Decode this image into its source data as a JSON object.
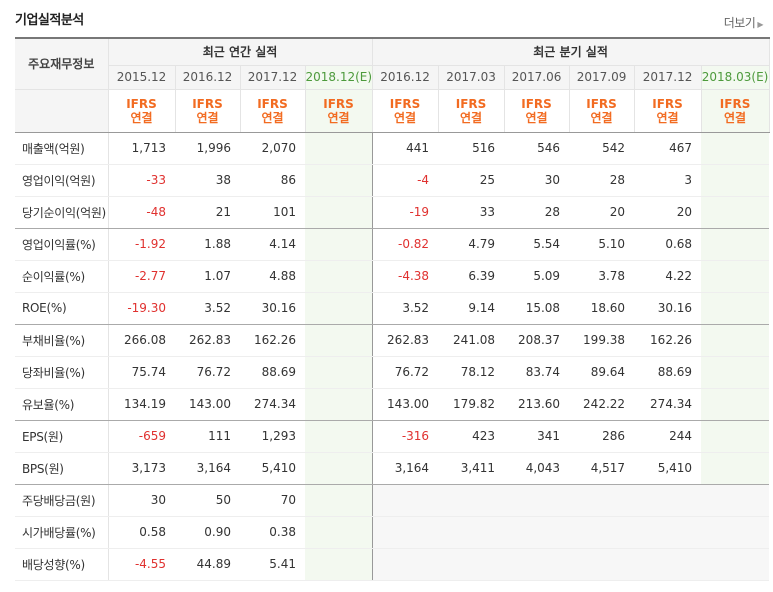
{
  "header": {
    "title": "기업실적분석",
    "more_label": "더보기"
  },
  "table": {
    "corner_label": "주요재무정보",
    "groups": {
      "annual": "최근 연간 실적",
      "quarterly": "최근 분기 실적"
    },
    "annual_periods": [
      "2015.12",
      "2016.12",
      "2017.12",
      "2018.12(E)"
    ],
    "quarterly_periods": [
      "2016.12",
      "2017.03",
      "2017.06",
      "2017.09",
      "2017.12",
      "2018.03(E)"
    ],
    "basis": {
      "line1": "IFRS",
      "line2": "연결"
    },
    "rows": [
      {
        "label": "매출액(억원)",
        "annual": [
          "1,713",
          "1,996",
          "2,070",
          ""
        ],
        "quarterly": [
          "441",
          "516",
          "546",
          "542",
          "467",
          ""
        ]
      },
      {
        "label": "영업이익(억원)",
        "annual": [
          "-33",
          "38",
          "86",
          ""
        ],
        "quarterly": [
          "-4",
          "25",
          "30",
          "28",
          "3",
          ""
        ]
      },
      {
        "label": "당기순이익(억원)",
        "annual": [
          "-48",
          "21",
          "101",
          ""
        ],
        "quarterly": [
          "-19",
          "33",
          "28",
          "20",
          "20",
          ""
        ]
      },
      {
        "label": "영업이익률(%)",
        "annual": [
          "-1.92",
          "1.88",
          "4.14",
          ""
        ],
        "quarterly": [
          "-0.82",
          "4.79",
          "5.54",
          "5.10",
          "0.68",
          ""
        ]
      },
      {
        "label": "순이익률(%)",
        "annual": [
          "-2.77",
          "1.07",
          "4.88",
          ""
        ],
        "quarterly": [
          "-4.38",
          "6.39",
          "5.09",
          "3.78",
          "4.22",
          ""
        ]
      },
      {
        "label": "ROE(%)",
        "annual": [
          "-19.30",
          "3.52",
          "30.16",
          ""
        ],
        "quarterly": [
          "3.52",
          "9.14",
          "15.08",
          "18.60",
          "30.16",
          ""
        ]
      },
      {
        "label": "부채비율(%)",
        "annual": [
          "266.08",
          "262.83",
          "162.26",
          ""
        ],
        "quarterly": [
          "262.83",
          "241.08",
          "208.37",
          "199.38",
          "162.26",
          ""
        ]
      },
      {
        "label": "당좌비율(%)",
        "annual": [
          "75.74",
          "76.72",
          "88.69",
          ""
        ],
        "quarterly": [
          "76.72",
          "78.12",
          "83.74",
          "89.64",
          "88.69",
          ""
        ]
      },
      {
        "label": "유보율(%)",
        "annual": [
          "134.19",
          "143.00",
          "274.34",
          ""
        ],
        "quarterly": [
          "143.00",
          "179.82",
          "213.60",
          "242.22",
          "274.34",
          ""
        ]
      },
      {
        "label": "EPS(원)",
        "annual": [
          "-659",
          "111",
          "1,293",
          ""
        ],
        "quarterly": [
          "-316",
          "423",
          "341",
          "286",
          "244",
          ""
        ]
      },
      {
        "label": "BPS(원)",
        "annual": [
          "3,173",
          "3,164",
          "5,410",
          ""
        ],
        "quarterly": [
          "3,164",
          "3,411",
          "4,043",
          "4,517",
          "5,410",
          ""
        ]
      },
      {
        "label": "주당배당금(원)",
        "annual": [
          "30",
          "50",
          "70",
          ""
        ],
        "quarterly": [
          "",
          "",
          "",
          "",
          "",
          ""
        ]
      },
      {
        "label": "시가배당률(%)",
        "annual": [
          "0.58",
          "0.90",
          "0.38",
          ""
        ],
        "quarterly": [
          "",
          "",
          "",
          "",
          "",
          ""
        ]
      },
      {
        "label": "배당성향(%)",
        "annual": [
          "-4.55",
          "44.89",
          "5.41",
          ""
        ],
        "quarterly": [
          "",
          "",
          "",
          "",
          "",
          ""
        ]
      }
    ]
  },
  "colors": {
    "negative": "#e0312f",
    "basis": "#f26b21",
    "estimate": "#4d9a3c",
    "estimate_bg": "#f3f9f0"
  }
}
